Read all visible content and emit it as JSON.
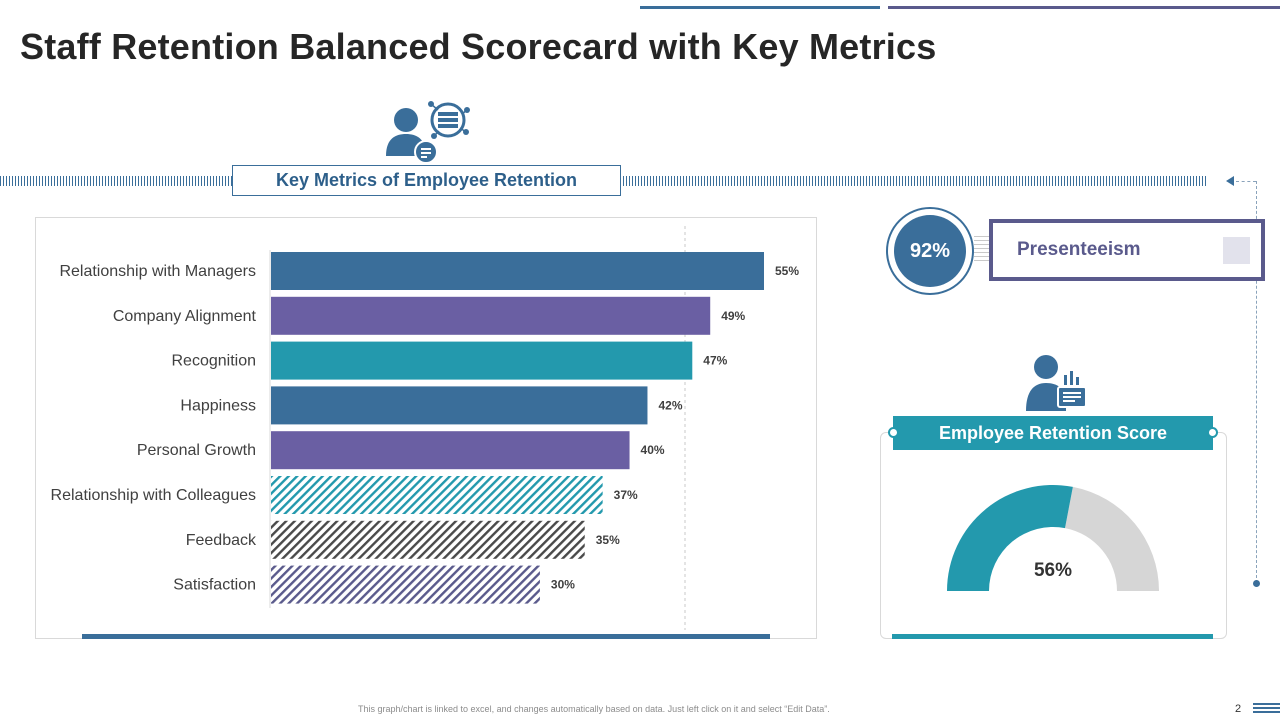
{
  "title": "Staff Retention Balanced Scorecard with Key Metrics",
  "key_metrics": {
    "heading": "Key Metrics of Employee Retention"
  },
  "presenteeism": {
    "value": "92%",
    "label": "Presenteeism"
  },
  "retention_score": {
    "heading": "Employee Retention Score",
    "value": "56%",
    "percent": 56
  },
  "footer": {
    "note": "This graph/chart is linked to excel, and changes automatically based on data. Just left click on it and select “Edit Data”.",
    "page": "2"
  },
  "colors": {
    "steel_blue": "#3a6e9a",
    "purple": "#6a5fa3",
    "teal": "#2399ad",
    "gray": "#d6d6d6",
    "dark_gray": "#4a4a4a"
  },
  "chart_data": {
    "type": "bar",
    "orientation": "horizontal",
    "title": "Key Metrics of Employee Retention",
    "categories": [
      "Relationship with Managers",
      "Company Alignment",
      "Recognition",
      "Happiness",
      "Personal Growth",
      "Relationship with Colleagues",
      "Feedback",
      "Satisfaction"
    ],
    "values": [
      55,
      49,
      47,
      42,
      40,
      37,
      35,
      30
    ],
    "value_labels": [
      "55%",
      "49%",
      "47%",
      "42%",
      "40%",
      "37%",
      "35%",
      "30%"
    ],
    "fills": [
      "solid-blue",
      "solid-purple",
      "solid-teal",
      "solid-blue",
      "solid-purple",
      "hatch-teal",
      "hatch-gray",
      "hatch-purple"
    ],
    "xlim": [
      0,
      55
    ],
    "grid": false
  }
}
